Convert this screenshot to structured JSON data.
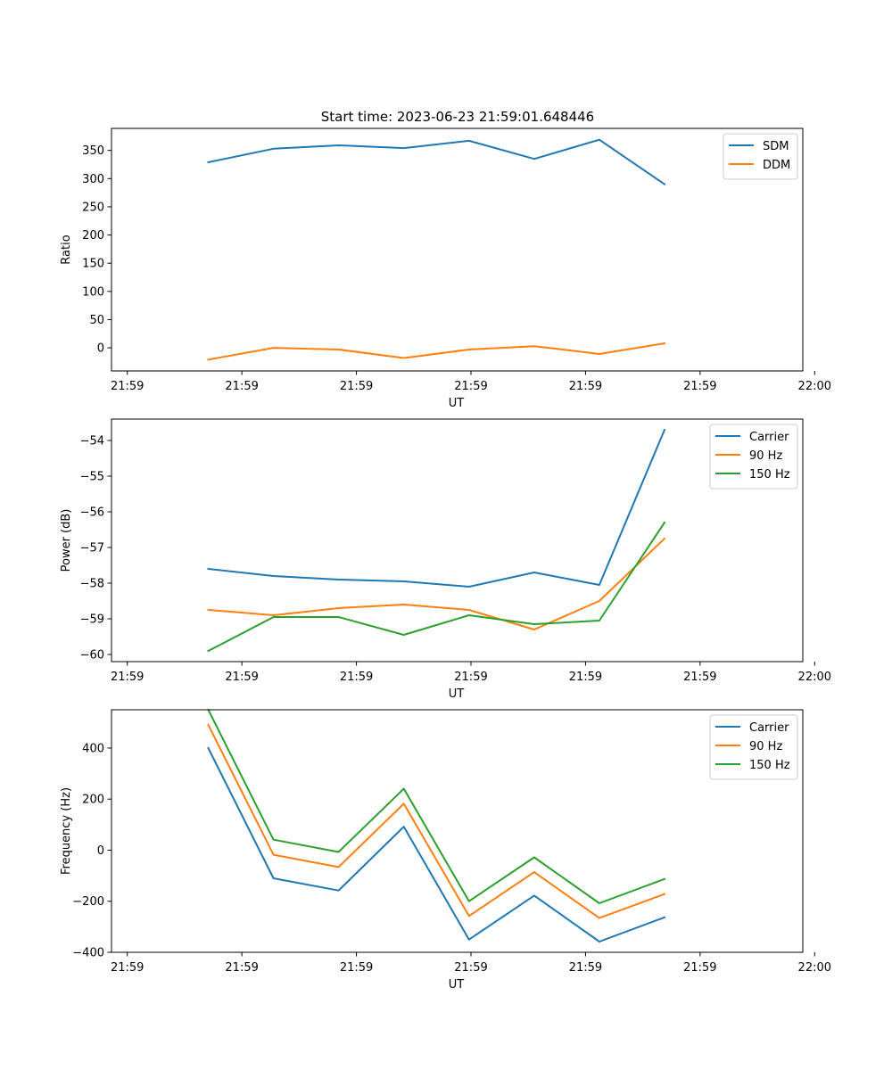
{
  "title": "Start time: 2023-06-23 21:59:01.648446",
  "chart_data": [
    {
      "type": "line",
      "xlabel": "UT",
      "ylabel": "Ratio",
      "x": [
        2.45,
        4.1,
        5.75,
        7.4,
        9.05,
        10.7,
        12.35,
        14.0
      ],
      "xlim": [
        0,
        17.5
      ],
      "x_ticks": [
        0.4,
        3.3,
        6.2,
        9.1,
        12.0,
        14.9,
        17.8
      ],
      "x_tick_labels": [
        "21:59",
        "21:59",
        "21:59",
        "21:59",
        "21:59",
        "21:59",
        "22:00"
      ],
      "ylim": [
        -41,
        389
      ],
      "y_ticks": [
        0,
        50,
        100,
        150,
        200,
        250,
        300,
        350
      ],
      "legend_position": "upper right",
      "series": [
        {
          "name": "SDM",
          "color": "#1f77b4",
          "values": [
            329,
            353,
            359,
            354,
            367,
            335,
            369,
            290
          ]
        },
        {
          "name": "DDM",
          "color": "#ff7f0e",
          "values": [
            -21,
            0,
            -3,
            -18,
            -3,
            3,
            -11,
            8
          ]
        }
      ]
    },
    {
      "type": "line",
      "xlabel": "UT",
      "ylabel": "Power (dB)",
      "x": [
        2.45,
        4.1,
        5.75,
        7.4,
        9.05,
        10.7,
        12.35,
        14.0
      ],
      "xlim": [
        0,
        17.5
      ],
      "x_ticks": [
        0.4,
        3.3,
        6.2,
        9.1,
        12.0,
        14.9,
        17.8
      ],
      "x_tick_labels": [
        "21:59",
        "21:59",
        "21:59",
        "21:59",
        "21:59",
        "21:59",
        "22:00"
      ],
      "ylim": [
        -60.2,
        -53.4
      ],
      "y_ticks": [
        -60,
        -59,
        -58,
        -57,
        -56,
        -55,
        -54
      ],
      "y_tick_labels": [
        "−60",
        "−59",
        "−58",
        "−57",
        "−56",
        "−55",
        "−54"
      ],
      "legend_position": "upper right",
      "series": [
        {
          "name": "Carrier",
          "color": "#1f77b4",
          "values": [
            -57.6,
            -57.8,
            -57.9,
            -57.95,
            -58.1,
            -57.7,
            -58.05,
            -53.7
          ]
        },
        {
          "name": "90 Hz",
          "color": "#ff7f0e",
          "values": [
            -58.75,
            -58.9,
            -58.7,
            -58.6,
            -58.75,
            -59.3,
            -58.5,
            -56.75
          ]
        },
        {
          "name": "150 Hz",
          "color": "#2ca02c",
          "values": [
            -59.9,
            -58.95,
            -58.95,
            -59.45,
            -58.9,
            -59.15,
            -59.05,
            -56.3
          ]
        }
      ]
    },
    {
      "type": "line",
      "xlabel": "UT",
      "ylabel": "Frequency (Hz)",
      "x": [
        2.45,
        4.1,
        5.75,
        7.4,
        9.05,
        10.7,
        12.35,
        14.0
      ],
      "xlim": [
        0,
        17.5
      ],
      "x_ticks": [
        0.4,
        3.3,
        6.2,
        9.1,
        12.0,
        14.9,
        17.8
      ],
      "x_tick_labels": [
        "21:59",
        "21:59",
        "21:59",
        "21:59",
        "21:59",
        "21:59",
        "22:00"
      ],
      "ylim": [
        -400,
        550
      ],
      "y_ticks": [
        -400,
        -200,
        0,
        200,
        400
      ],
      "y_tick_labels": [
        "−400",
        "−200",
        "0",
        "200",
        "400"
      ],
      "legend_position": "upper right",
      "series": [
        {
          "name": "Carrier",
          "color": "#1f77b4",
          "values": [
            400,
            -110,
            -158,
            92,
            -350,
            -178,
            -358,
            -263
          ]
        },
        {
          "name": "90 Hz",
          "color": "#ff7f0e",
          "values": [
            491,
            -18,
            -66,
            182,
            -258,
            -86,
            -266,
            -172
          ]
        },
        {
          "name": "150 Hz",
          "color": "#2ca02c",
          "values": [
            550,
            41,
            -7,
            241,
            -200,
            -28,
            -208,
            -113
          ]
        }
      ]
    }
  ]
}
